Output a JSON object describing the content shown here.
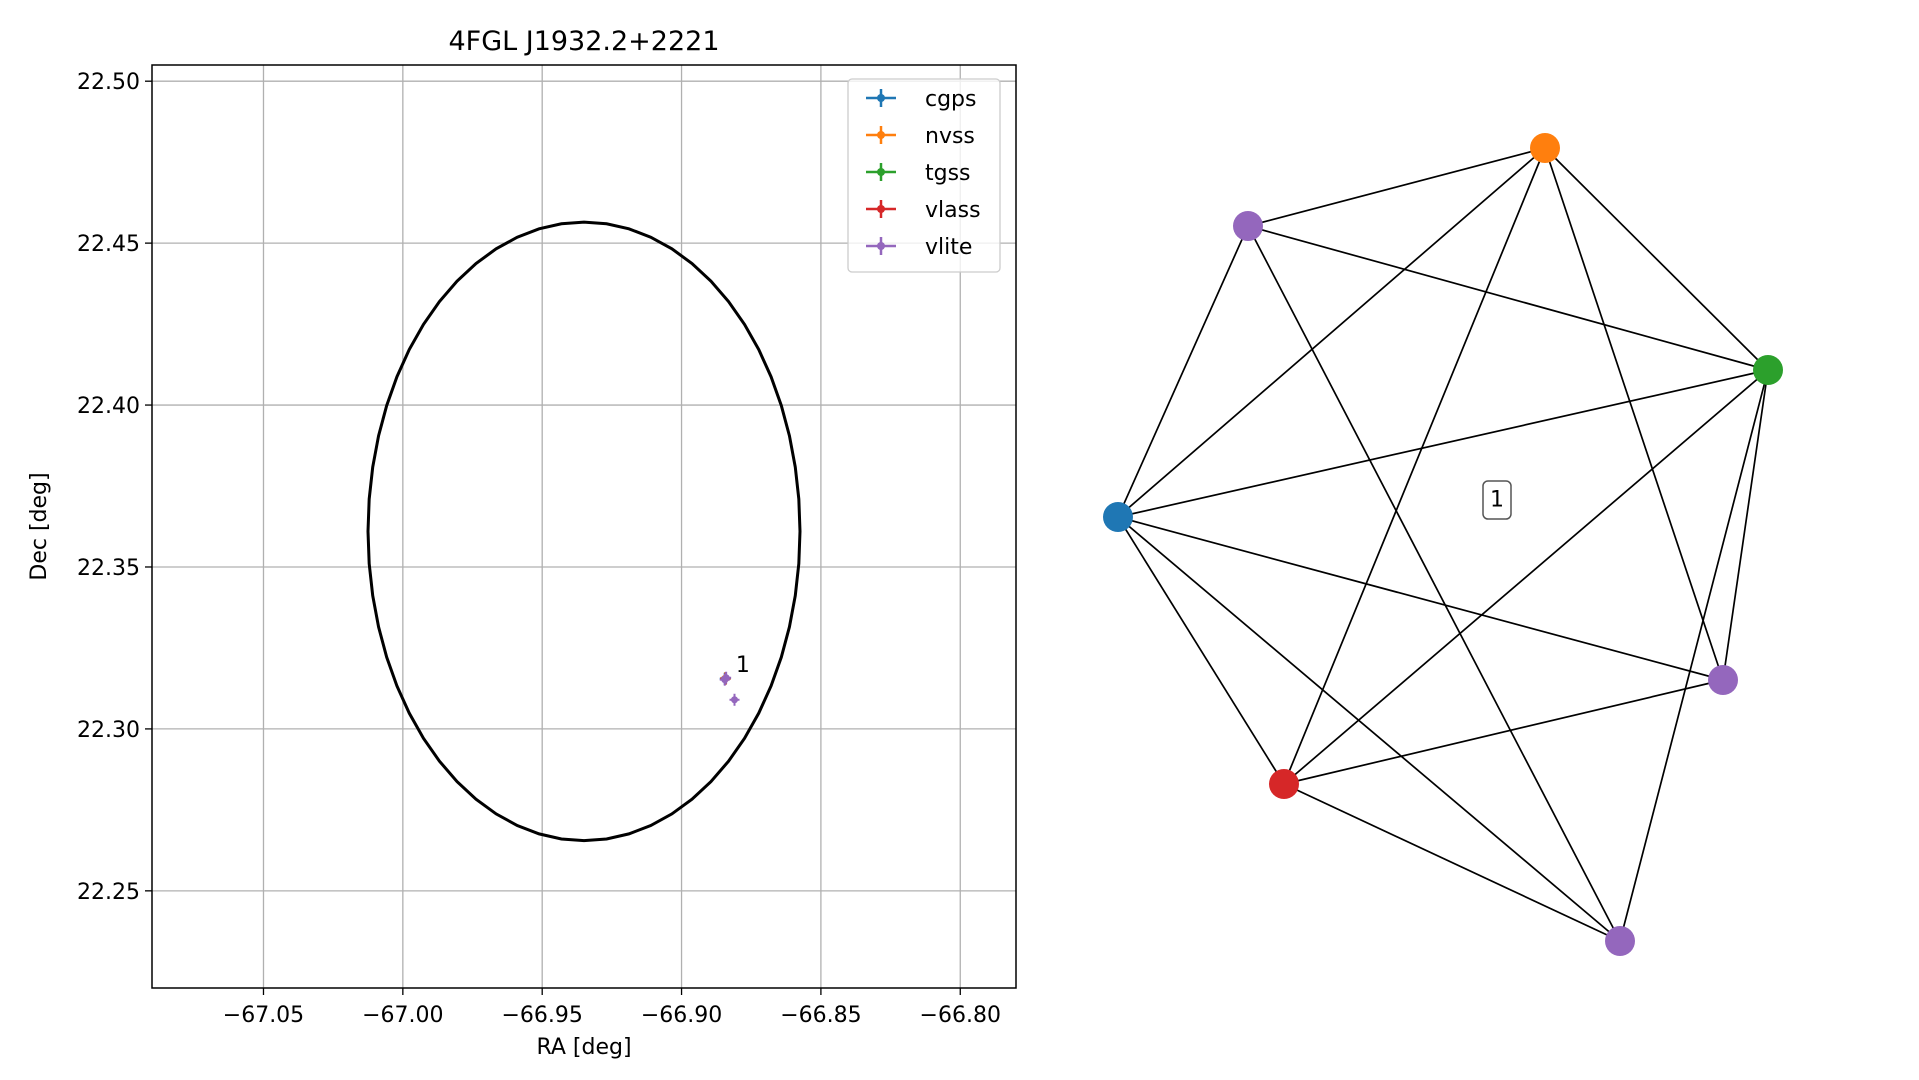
{
  "chart_data": [
    {
      "type": "scatter",
      "title": "4FGL J1932.2+2221",
      "xlabel": "RA [deg]",
      "ylabel": "Dec [deg]",
      "xlim": [
        -67.09,
        -66.78
      ],
      "ylim": [
        22.22,
        22.505
      ],
      "x_ticks": [
        -67.05,
        -67.0,
        -66.95,
        -66.9,
        -66.85,
        -66.8
      ],
      "x_tick_labels": [
        "−67.05",
        "−67.00",
        "−66.95",
        "−66.90",
        "−66.85",
        "−66.80"
      ],
      "y_ticks": [
        22.25,
        22.3,
        22.35,
        22.4,
        22.45,
        22.5
      ],
      "y_tick_labels": [
        "22.25",
        "22.30",
        "22.35",
        "22.40",
        "22.45",
        "22.50"
      ],
      "grid": true,
      "legend_position": "top-right",
      "ellipse": {
        "center": [
          -66.935,
          22.361
        ],
        "ra_radius": 0.0775,
        "dec_radius": 0.0955
      },
      "series": [
        {
          "name": "cgps",
          "color": "#1f77b4",
          "points": [
            {
              "x": -66.8845,
              "y": 22.3155
            }
          ]
        },
        {
          "name": "nvss",
          "color": "#ff7f0e",
          "points": [
            {
              "x": -66.8843,
              "y": 22.3157
            }
          ]
        },
        {
          "name": "tgss",
          "color": "#2ca02c",
          "points": [
            {
              "x": -66.8841,
              "y": 22.3156
            }
          ]
        },
        {
          "name": "vlass",
          "color": "#d62728",
          "points": [
            {
              "x": -66.8842,
              "y": 22.3155
            }
          ]
        },
        {
          "name": "vlite",
          "color": "#9467bd",
          "points": [
            {
              "x": -66.884,
              "y": 22.3158
            },
            {
              "x": -66.8845,
              "y": 22.3152
            },
            {
              "x": -66.881,
              "y": 22.309
            }
          ]
        }
      ],
      "annotations": [
        {
          "text": "1",
          "x": -66.8805,
          "y": 22.3175
        }
      ]
    },
    {
      "type": "network",
      "label": "1",
      "nodes": [
        {
          "catalog": "cgps",
          "color": "#1f77b4"
        },
        {
          "catalog": "nvss",
          "color": "#ff7f0e"
        },
        {
          "catalog": "tgss",
          "color": "#2ca02c"
        },
        {
          "catalog": "vlass",
          "color": "#d62728"
        },
        {
          "catalog": "vlite",
          "color": "#9467bd"
        },
        {
          "catalog": "vlite",
          "color": "#9467bd"
        },
        {
          "catalog": "vlite",
          "color": "#9467bd"
        }
      ],
      "edges": [
        [
          0,
          1
        ],
        [
          0,
          2
        ],
        [
          0,
          3
        ],
        [
          0,
          4
        ],
        [
          0,
          5
        ],
        [
          0,
          6
        ],
        [
          1,
          2
        ],
        [
          1,
          3
        ],
        [
          1,
          4
        ],
        [
          1,
          5
        ],
        [
          2,
          3
        ],
        [
          2,
          4
        ],
        [
          2,
          5
        ],
        [
          2,
          6
        ],
        [
          3,
          5
        ],
        [
          3,
          6
        ],
        [
          4,
          6
        ]
      ]
    }
  ]
}
